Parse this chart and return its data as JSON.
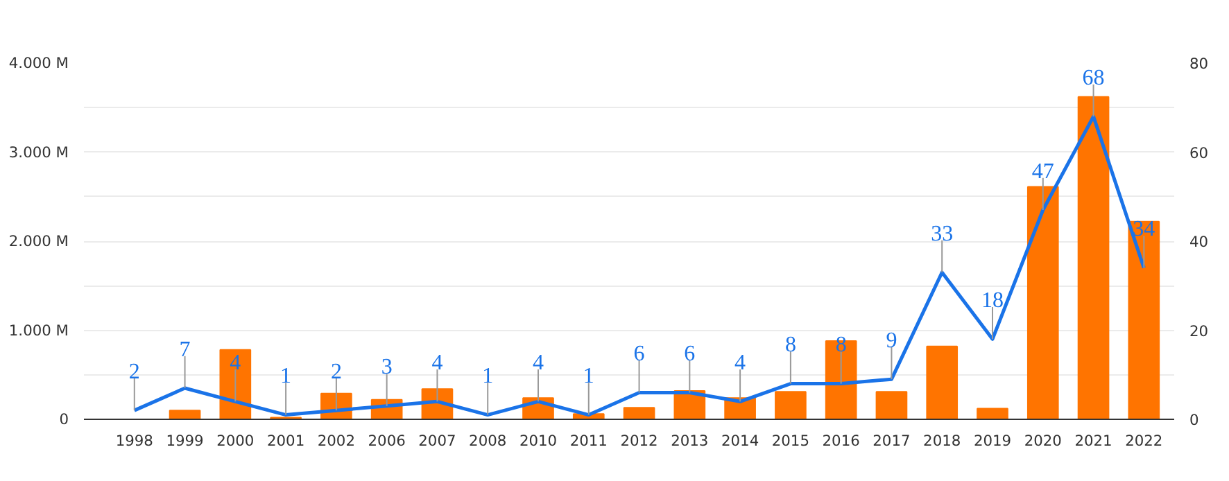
{
  "chart_data": {
    "type": "bar",
    "categories": [
      "1998",
      "1999",
      "2000",
      "2001",
      "2002",
      "2006",
      "2007",
      "2008",
      "2010",
      "2011",
      "2012",
      "2013",
      "2014",
      "2015",
      "2016",
      "2017",
      "2018",
      "2019",
      "2020",
      "2021",
      "2022"
    ],
    "series": [
      {
        "color": "#ff7400",
        "values": [
          null,
          100,
          780,
          20,
          290,
          220,
          340,
          null,
          240,
          60,
          130,
          320,
          240,
          310,
          880,
          310,
          820,
          120,
          2610,
          3620,
          2220
        ]
      },
      {
        "type": "line",
        "axis": "y2",
        "color": "#1a73e8",
        "values": [
          2,
          7,
          4,
          1,
          2,
          3,
          4,
          1,
          4,
          1,
          6,
          6,
          4,
          8,
          8,
          9,
          33,
          18,
          47,
          68,
          34
        ],
        "value_labels": [
          "2",
          "7",
          "4",
          "1",
          "2",
          "3",
          "4",
          "1",
          "4",
          "1",
          "6",
          "6",
          "4",
          "8",
          "8",
          "9",
          "33",
          "18",
          "47",
          "68",
          "34"
        ]
      }
    ],
    "ylim": [
      0,
      4000
    ],
    "yticks": [
      {
        "value": 0,
        "label": "0"
      },
      {
        "value": 500,
        "label": null
      },
      {
        "value": 1000,
        "label": "1.000 M"
      },
      {
        "value": 1500,
        "label": null
      },
      {
        "value": 2000,
        "label": "2.000 M"
      },
      {
        "value": 2500,
        "label": null
      },
      {
        "value": 3000,
        "label": "3.000 M"
      },
      {
        "value": 3500,
        "label": null
      },
      {
        "value": 4000,
        "label": "4.000 M"
      }
    ],
    "y2lim": [
      0,
      80
    ],
    "y2ticks": [
      0,
      20,
      40,
      60,
      80
    ],
    "grid": "y",
    "marker": "none",
    "line_style": "solid"
  }
}
